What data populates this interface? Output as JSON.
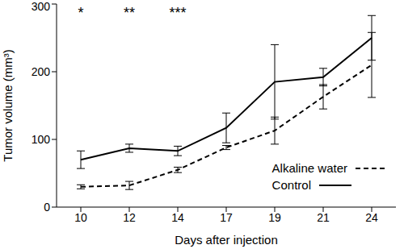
{
  "chart_data": {
    "type": "line",
    "x_label": "Days after injection",
    "y_label": "Tumor volume (mm³)",
    "categories": [
      "10",
      "12",
      "14",
      "17",
      "19",
      "21",
      "24"
    ],
    "series": [
      {
        "name": "Alkaline water",
        "color": "#000000",
        "line_style": "dashed",
        "values": [
          30,
          32,
          55,
          88,
          113,
          163,
          210
        ],
        "errors": [
          3,
          6,
          4,
          3,
          20,
          18,
          48
        ]
      },
      {
        "name": "Control",
        "color": "#000000",
        "line_style": "solid",
        "values": [
          70,
          87,
          83,
          117,
          185,
          192,
          250
        ],
        "errors": [
          13,
          6,
          7,
          22,
          55,
          13,
          33
        ]
      }
    ],
    "ylim": [
      0,
      300
    ],
    "yticks": [
      0,
      100,
      200,
      300
    ],
    "legend": "lower right",
    "annotations": [
      {
        "x": "10",
        "text": "*"
      },
      {
        "x": "12",
        "text": "**"
      },
      {
        "x": "14",
        "text": "***"
      }
    ]
  }
}
